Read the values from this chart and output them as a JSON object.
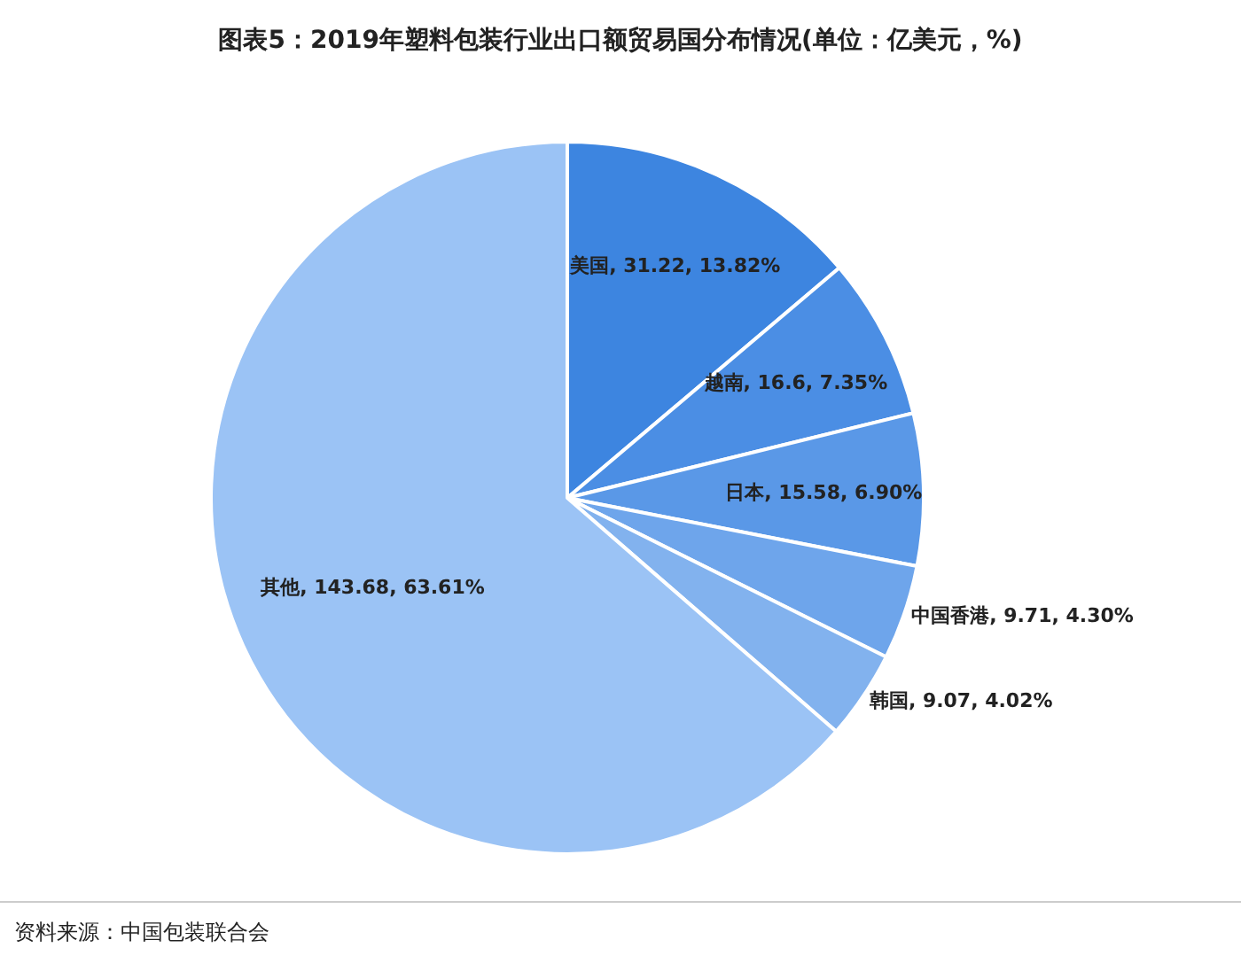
{
  "chart_data": {
    "type": "pie",
    "title": "图表5：2019年塑料包装行业出口额贸易国分布情况(单位：亿美元，%)",
    "categories": [
      "美国",
      "越南",
      "日本",
      "中国香港",
      "韩国",
      "其他"
    ],
    "values": [
      31.22,
      16.6,
      15.58,
      9.71,
      9.07,
      143.68
    ],
    "value_labels": [
      "31.22, 13.82%",
      "16.6, 7.35%",
      "15.58, 6.90%",
      "9.71, 4.30%",
      "9.07, 4.02%",
      "143.68, 63.61%"
    ],
    "colors": [
      "#3d85e0",
      "#4b8ee4",
      "#5a98e7",
      "#6ea5eb",
      "#82b2ee",
      "#9bc3f5"
    ],
    "annotations": [
      "资料来源：中国包装联合会"
    ]
  }
}
